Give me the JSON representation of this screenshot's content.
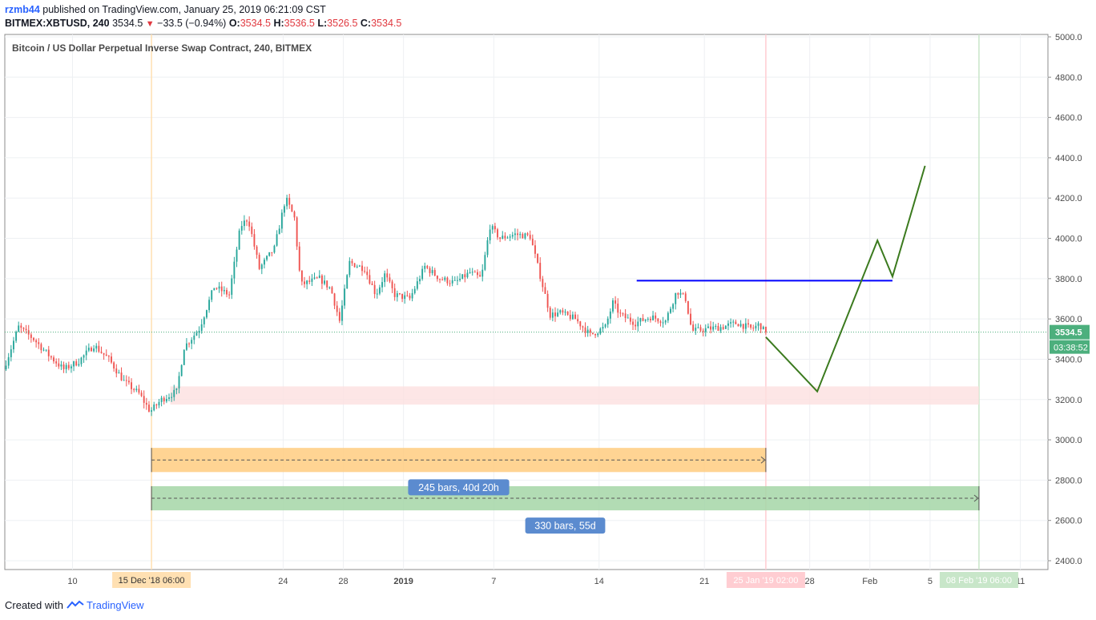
{
  "header": {
    "user": "rzmb44",
    "published_text": "published on TradingView.com, January 25, 2019 06:21:09 CST",
    "symbol_tf": "BITMEX:XBTUSD, 240",
    "price": "3534.5",
    "change": "−33.5 (−0.94%)",
    "o_label": "O:",
    "o_value": "3534.5",
    "h_label": "H:",
    "h_value": "3536.5",
    "l_label": "L:",
    "l_value": "3526.5",
    "c_label": "C:",
    "c_value": "3534.5"
  },
  "footer": {
    "created_with": "Created with",
    "brand": "TradingView"
  },
  "colors": {
    "up": "#26a69a",
    "down": "#ef5350",
    "blue_line": "#0000ff",
    "projection": "#3b7a1e",
    "orange_zone": "#ffcc80",
    "green_zone": "#a5d6a7",
    "pink_zone": "#fde0e0",
    "label_bg": "#5b8bcf",
    "price_tag": "#4caf7d"
  },
  "chart_data": {
    "type": "candlestick",
    "title": "Bitcoin / US Dollar Perpetual Inverse Swap Contract, 240, BITMEX",
    "timeframe_hours": 4,
    "x_range": [
      "2018-12-05T12:00",
      "2019-02-12T20:00"
    ],
    "ylim": [
      2350,
      5050
    ],
    "y_ticks": [
      "5000.0",
      "4800.0",
      "4600.0",
      "4400.0",
      "4200.0",
      "4000.0",
      "3800.0",
      "3600.0",
      "3400.0",
      "3200.0",
      "3000.0",
      "2800.0",
      "2600.0",
      "2400.0"
    ],
    "x_ticks": [
      {
        "label": "10",
        "date": "2018-12-10"
      },
      {
        "label": "24",
        "date": "2018-12-24"
      },
      {
        "label": "28",
        "date": "2018-12-28"
      },
      {
        "label": "2019",
        "date": "2019-01-01",
        "bold": true
      },
      {
        "label": "7",
        "date": "2019-01-07"
      },
      {
        "label": "14",
        "date": "2019-01-14"
      },
      {
        "label": "21",
        "date": "2019-01-21"
      },
      {
        "label": "28",
        "date": "2019-01-28"
      },
      {
        "label": "Feb",
        "date": "2019-02-01"
      },
      {
        "label": "5",
        "date": "2019-02-05"
      },
      {
        "label": "11",
        "date": "2019-02-11"
      }
    ],
    "x_highlight_labels": [
      {
        "text": "15 Dec '18   06:00",
        "date": "2018-12-15T06:00",
        "style": "orange"
      },
      {
        "text": "25 Jan '19   02:00",
        "date": "2019-01-25T02:00",
        "style": "pink"
      },
      {
        "text": "08 Feb '19   06:00",
        "date": "2019-02-08T06:00",
        "style": "green"
      }
    ],
    "last_price": 3534.5,
    "last_price_label": "3534.5",
    "countdown_label": "03:38:52",
    "price_path": [
      [
        "2018-12-05T12:00",
        3350
      ],
      [
        "2018-12-06T12:00",
        3560
      ],
      [
        "2018-12-07T12:00",
        3500
      ],
      [
        "2018-12-08T12:00",
        3420
      ],
      [
        "2018-12-09T12:00",
        3350
      ],
      [
        "2018-12-10T12:00",
        3390
      ],
      [
        "2018-12-11T12:00",
        3470
      ],
      [
        "2018-12-12T12:00",
        3400
      ],
      [
        "2018-12-13T12:00",
        3290
      ],
      [
        "2018-12-14T12:00",
        3230
      ],
      [
        "2018-12-15T06:00",
        3140
      ],
      [
        "2018-12-16T00:00",
        3200
      ],
      [
        "2018-12-17T00:00",
        3240
      ],
      [
        "2018-12-17T12:00",
        3460
      ],
      [
        "2018-12-18T12:00",
        3550
      ],
      [
        "2018-12-19T12:00",
        3760
      ],
      [
        "2018-12-20T12:00",
        3720
      ],
      [
        "2018-12-21T06:00",
        4060
      ],
      [
        "2018-12-21T18:00",
        4100
      ],
      [
        "2018-12-22T12:00",
        3850
      ],
      [
        "2018-12-23T12:00",
        3950
      ],
      [
        "2018-12-24T06:00",
        4200
      ],
      [
        "2018-12-24T20:00",
        4100
      ],
      [
        "2018-12-25T06:00",
        3770
      ],
      [
        "2018-12-26T12:00",
        3800
      ],
      [
        "2018-12-27T06:00",
        3750
      ],
      [
        "2018-12-27T20:00",
        3590
      ],
      [
        "2018-12-28T12:00",
        3880
      ],
      [
        "2018-12-29T12:00",
        3850
      ],
      [
        "2018-12-30T06:00",
        3720
      ],
      [
        "2018-12-30T20:00",
        3820
      ],
      [
        "2018-12-31T12:00",
        3720
      ],
      [
        "2019-01-01T12:00",
        3700
      ],
      [
        "2019-01-02T12:00",
        3860
      ],
      [
        "2019-01-03T12:00",
        3800
      ],
      [
        "2019-01-04T12:00",
        3780
      ],
      [
        "2019-01-05T12:00",
        3830
      ],
      [
        "2019-01-06T06:00",
        3800
      ],
      [
        "2019-01-06T20:00",
        4060
      ],
      [
        "2019-01-07T12:00",
        4000
      ],
      [
        "2019-01-08T12:00",
        4020
      ],
      [
        "2019-01-09T12:00",
        4010
      ],
      [
        "2019-01-10T06:00",
        3790
      ],
      [
        "2019-01-10T20:00",
        3620
      ],
      [
        "2019-01-11T12:00",
        3630
      ],
      [
        "2019-01-12T12:00",
        3600
      ],
      [
        "2019-01-13T12:00",
        3520
      ],
      [
        "2019-01-14T12:00",
        3560
      ],
      [
        "2019-01-15T00:00",
        3680
      ],
      [
        "2019-01-15T12:00",
        3620
      ],
      [
        "2019-01-16T12:00",
        3580
      ],
      [
        "2019-01-17T12:00",
        3610
      ],
      [
        "2019-01-18T12:00",
        3590
      ],
      [
        "2019-01-19T06:00",
        3740
      ],
      [
        "2019-01-19T20:00",
        3700
      ],
      [
        "2019-01-20T06:00",
        3540
      ],
      [
        "2019-01-21T06:00",
        3550
      ],
      [
        "2019-01-22T06:00",
        3560
      ],
      [
        "2019-01-23T06:00",
        3580
      ],
      [
        "2019-01-24T06:00",
        3550
      ],
      [
        "2019-01-24T18:00",
        3575
      ],
      [
        "2019-01-25T02:00",
        3534.5
      ]
    ],
    "horizontal_line": {
      "price": 3790,
      "from": "2019-01-16T12:00",
      "to": "2019-02-02T12:00",
      "color": "#0000ff"
    },
    "projection_path": [
      [
        "2019-01-25T02:00",
        3510
      ],
      [
        "2019-01-28T12:00",
        3240
      ],
      [
        "2019-02-01T12:00",
        3990
      ],
      [
        "2019-02-02T12:00",
        3810
      ],
      [
        "2019-02-04T16:00",
        4360
      ]
    ],
    "zones": [
      {
        "kind": "support",
        "from": "2018-12-16T12:00",
        "to": "2019-02-08T06:00",
        "y1": 3175,
        "y2": 3265,
        "color": "#fde0e0"
      }
    ],
    "date_ranges": [
      {
        "from": "2018-12-15T06:00",
        "to": "2019-01-25T02:00",
        "y1": 2840,
        "y2": 2960,
        "color": "#ffcc80",
        "label": "245 bars, 40d 20h"
      },
      {
        "from": "2018-12-15T06:00",
        "to": "2019-02-08T06:00",
        "y1": 2650,
        "y2": 2770,
        "color": "#a5d6a7",
        "label": "330 bars, 55d"
      }
    ],
    "vertical_markers": [
      {
        "date": "2018-12-15T06:00",
        "color": "#ffe0b2"
      },
      {
        "date": "2019-01-25T02:00",
        "color": "#ffcdd2"
      },
      {
        "date": "2019-02-08T06:00",
        "color": "#c8e6c9"
      }
    ]
  }
}
